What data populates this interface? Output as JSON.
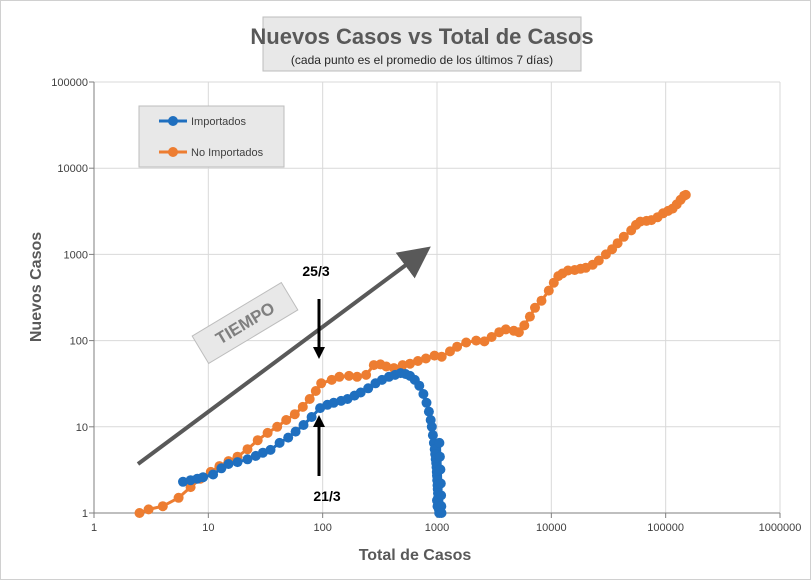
{
  "chart_data": {
    "type": "scatter",
    "title": "Nuevos Casos vs Total de Casos",
    "subtitle": "(cada punto es el promedio de los últimos 7 días)",
    "xlabel": "Total de Casos",
    "ylabel": "Nuevos Casos",
    "xscale": "log",
    "yscale": "log",
    "xlim": [
      1,
      1000000
    ],
    "ylim": [
      1,
      100000
    ],
    "x_ticks": [
      "1",
      "10",
      "100",
      "1000",
      "10000",
      "100000",
      "1000000"
    ],
    "y_ticks": [
      "1",
      "10",
      "100",
      "1000",
      "10000",
      "100000"
    ],
    "grid": true,
    "legend_position": "top-left",
    "series": [
      {
        "name": "Importados",
        "color": "#1f6fbf",
        "points": [
          [
            6,
            2.3
          ],
          [
            7,
            2.4
          ],
          [
            8,
            2.5
          ],
          [
            9,
            2.6
          ],
          [
            11,
            2.8
          ],
          [
            13,
            3.3
          ],
          [
            15,
            3.7
          ],
          [
            18,
            3.9
          ],
          [
            22,
            4.2
          ],
          [
            26,
            4.6
          ],
          [
            30,
            5.0
          ],
          [
            35,
            5.4
          ],
          [
            42,
            6.5
          ],
          [
            50,
            7.5
          ],
          [
            58,
            8.8
          ],
          [
            68,
            10.5
          ],
          [
            80,
            13
          ],
          [
            95,
            16.5
          ],
          [
            110,
            18
          ],
          [
            125,
            19
          ],
          [
            145,
            20
          ],
          [
            165,
            21
          ],
          [
            190,
            23
          ],
          [
            215,
            25
          ],
          [
            250,
            28
          ],
          [
            290,
            32
          ],
          [
            330,
            35
          ],
          [
            380,
            38
          ],
          [
            430,
            40
          ],
          [
            480,
            42
          ],
          [
            530,
            41
          ],
          [
            580,
            39
          ],
          [
            640,
            35
          ],
          [
            700,
            30
          ],
          [
            760,
            24
          ],
          [
            810,
            19
          ],
          [
            850,
            15
          ],
          [
            880,
            12
          ],
          [
            900,
            10
          ],
          [
            920,
            8
          ],
          [
            940,
            6.5
          ],
          [
            955,
            5.5
          ],
          [
            965,
            4.8
          ],
          [
            975,
            4.2
          ],
          [
            985,
            3.8
          ],
          [
            990,
            3.4
          ],
          [
            995,
            3.0
          ],
          [
            1000,
            2.7
          ],
          [
            1005,
            2.4
          ],
          [
            1010,
            2.1
          ],
          [
            1015,
            1.9
          ],
          [
            1020,
            1.7
          ],
          [
            1025,
            1.5
          ],
          [
            1030,
            1.35
          ],
          [
            1035,
            1.2
          ],
          [
            1040,
            1.1
          ],
          [
            1045,
            1.0
          ],
          [
            1000,
            1.4
          ],
          [
            1010,
            1.2
          ],
          [
            1050,
            6.5
          ],
          [
            1060,
            4.5
          ],
          [
            1070,
            3.2
          ],
          [
            1080,
            2.2
          ],
          [
            1085,
            1.6
          ],
          [
            1090,
            1.2
          ],
          [
            1095,
            1.0
          ]
        ]
      },
      {
        "name": "No Importados",
        "color": "#ed7d31",
        "points": [
          [
            2.5,
            1.0
          ],
          [
            3,
            1.1
          ],
          [
            4,
            1.2
          ],
          [
            5.5,
            1.5
          ],
          [
            7,
            2.0
          ],
          [
            8.5,
            2.5
          ],
          [
            10.5,
            3.0
          ],
          [
            12.5,
            3.5
          ],
          [
            15,
            4.0
          ],
          [
            18,
            4.5
          ],
          [
            22,
            5.5
          ],
          [
            27,
            7.0
          ],
          [
            33,
            8.5
          ],
          [
            40,
            10
          ],
          [
            48,
            12
          ],
          [
            57,
            14
          ],
          [
            67,
            17
          ],
          [
            77,
            21
          ],
          [
            87,
            26
          ],
          [
            97,
            32
          ],
          [
            120,
            35
          ],
          [
            140,
            38
          ],
          [
            170,
            39
          ],
          [
            200,
            38
          ],
          [
            240,
            40
          ],
          [
            280,
            52
          ],
          [
            320,
            53
          ],
          [
            360,
            50
          ],
          [
            420,
            48
          ],
          [
            500,
            52
          ],
          [
            580,
            54
          ],
          [
            680,
            58
          ],
          [
            800,
            62
          ],
          [
            950,
            67
          ],
          [
            1100,
            65
          ],
          [
            1300,
            75
          ],
          [
            1500,
            85
          ],
          [
            1800,
            95
          ],
          [
            2200,
            100
          ],
          [
            2600,
            98
          ],
          [
            3000,
            110
          ],
          [
            3500,
            125
          ],
          [
            4000,
            135
          ],
          [
            4700,
            130
          ],
          [
            5200,
            125
          ],
          [
            5800,
            150
          ],
          [
            6500,
            190
          ],
          [
            7200,
            240
          ],
          [
            8200,
            290
          ],
          [
            9500,
            380
          ],
          [
            10500,
            470
          ],
          [
            11500,
            560
          ],
          [
            12500,
            600
          ],
          [
            14000,
            650
          ],
          [
            16000,
            660
          ],
          [
            18000,
            680
          ],
          [
            20000,
            700
          ],
          [
            23000,
            760
          ],
          [
            26000,
            850
          ],
          [
            30000,
            1000
          ],
          [
            34000,
            1150
          ],
          [
            38000,
            1350
          ],
          [
            43000,
            1600
          ],
          [
            50000,
            1900
          ],
          [
            55000,
            2200
          ],
          [
            60000,
            2400
          ],
          [
            68000,
            2450
          ],
          [
            75000,
            2500
          ],
          [
            85000,
            2700
          ],
          [
            95000,
            3000
          ],
          [
            105000,
            3200
          ],
          [
            115000,
            3400
          ],
          [
            125000,
            3800
          ],
          [
            135000,
            4300
          ],
          [
            145000,
            4800
          ],
          [
            150000,
            4900
          ]
        ]
      }
    ],
    "annotations": [
      {
        "text": "TIEMPO",
        "type": "arrow-label"
      },
      {
        "text": "25/3",
        "x": 100,
        "direction": "down"
      },
      {
        "text": "21/3",
        "x": 100,
        "direction": "up"
      }
    ]
  }
}
